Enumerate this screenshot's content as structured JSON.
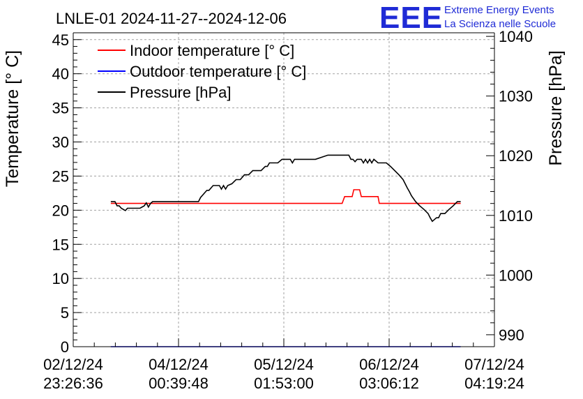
{
  "logo": {
    "mark": "EEE",
    "line1": "Extreme Energy Events",
    "line2": "La Scienza nelle Scuole"
  },
  "chart_data": {
    "type": "line",
    "title": "LNLE-01 2024-11-27--2024-12-06",
    "ylabel": "Temperature [° C]",
    "y2label": "Pressure [hPa]",
    "xlabel": "",
    "ylim": [
      0,
      46
    ],
    "y2lim": [
      988,
      1040.6
    ],
    "yticks": [
      0,
      5,
      10,
      15,
      20,
      25,
      30,
      35,
      40,
      45
    ],
    "y2ticks": [
      990,
      1000,
      1010,
      1020,
      1030,
      1040
    ],
    "x_ticks": [
      {
        "date": "02/12/24",
        "time": "23:26:36",
        "hours": 0
      },
      {
        "date": "04/12/24",
        "time": "00:39:48",
        "hours": 25.22
      },
      {
        "date": "05/12/24",
        "time": "01:53:00",
        "hours": 50.44
      },
      {
        "date": "06/12/24",
        "time": "03:06:12",
        "hours": 75.66
      },
      {
        "date": "07/12/24",
        "time": "04:19:24",
        "hours": 100.88
      }
    ],
    "xlim_hours": [
      0,
      100.88
    ],
    "grid": true,
    "legend_position": "top-left",
    "series": [
      {
        "name": "Indoor temperature [° C]",
        "color": "#ff0000",
        "axis": "left",
        "x_hours": [
          9.0,
          10.0,
          15.0,
          20.0,
          30.0,
          40.0,
          50.0,
          60.0,
          64.4,
          65.0,
          66.8,
          67.2,
          68.6,
          69.0,
          73.0,
          73.3,
          80.0,
          90.0,
          92.0,
          92.8
        ],
        "values": [
          21.0,
          21.0,
          21.0,
          21.0,
          21.0,
          21.0,
          21.0,
          21.0,
          21.0,
          22.0,
          22.0,
          23.0,
          23.0,
          22.0,
          22.0,
          21.0,
          21.0,
          21.0,
          21.0,
          21.0
        ]
      },
      {
        "name": "Outdoor temperature [° C]",
        "color": "#0000ff",
        "axis": "left",
        "x_hours": [
          9.0,
          30.0,
          50.0,
          70.0,
          92.8
        ],
        "values": [
          0,
          0,
          0,
          0,
          0
        ]
      },
      {
        "name": "Pressure [hPa]",
        "color": "#000000",
        "axis": "right",
        "x_hours": [
          9.0,
          10.0,
          10.5,
          11.0,
          11.5,
          12.0,
          12.5,
          13.0,
          14.0,
          16.0,
          17.0,
          17.5,
          18.0,
          18.5,
          19.0,
          22.0,
          25.0,
          28.0,
          30.0,
          30.5,
          32.0,
          32.5,
          33.5,
          34.0,
          35.0,
          35.5,
          36.0,
          36.5,
          37.0,
          38.0,
          39.0,
          40.0,
          41.0,
          42.0,
          43.0,
          44.0,
          45.0,
          46.0,
          46.5,
          47.0,
          49.0,
          50.0,
          51.0,
          52.0,
          52.5,
          53.0,
          54.0,
          56.0,
          58.0,
          61.0,
          63.0,
          66.0,
          66.5,
          67.0,
          67.5,
          68.0,
          69.0,
          69.5,
          70.0,
          70.5,
          71.0,
          71.5,
          72.0,
          73.0,
          74.0,
          75.0,
          76.0,
          77.0,
          78.0,
          79.0,
          79.5,
          80.0,
          80.5,
          81.0,
          82.0,
          83.0,
          84.0,
          85.0,
          85.5,
          86.0,
          87.0,
          87.5,
          88.0,
          89.0,
          90.0,
          91.0,
          92.0,
          92.8
        ],
        "values": [
          1012.3,
          1012.3,
          1011.6,
          1011.6,
          1011.2,
          1011.0,
          1010.8,
          1011.2,
          1011.2,
          1011.2,
          1011.6,
          1012.1,
          1011.4,
          1012.0,
          1012.3,
          1012.3,
          1012.3,
          1012.3,
          1012.3,
          1013.0,
          1014.2,
          1014.2,
          1015.0,
          1015.0,
          1015.0,
          1014.4,
          1015.0,
          1014.4,
          1015.0,
          1015.3,
          1016.0,
          1016.0,
          1016.8,
          1016.8,
          1017.5,
          1017.5,
          1017.5,
          1018.2,
          1018.2,
          1018.8,
          1018.8,
          1019.4,
          1019.4,
          1019.4,
          1018.8,
          1019.4,
          1019.4,
          1019.4,
          1019.4,
          1020.1,
          1020.1,
          1020.1,
          1019.4,
          1019.4,
          1019.0,
          1019.4,
          1019.4,
          1018.8,
          1019.4,
          1018.8,
          1019.4,
          1018.8,
          1019.4,
          1018.8,
          1018.8,
          1018.8,
          1018.2,
          1017.5,
          1016.8,
          1016.0,
          1015.3,
          1014.6,
          1014.0,
          1013.3,
          1012.3,
          1011.6,
          1011.0,
          1010.3,
          1009.6,
          1009.0,
          1009.6,
          1009.6,
          1010.3,
          1010.3,
          1011.0,
          1011.6,
          1012.3,
          1012.3
        ]
      }
    ]
  }
}
